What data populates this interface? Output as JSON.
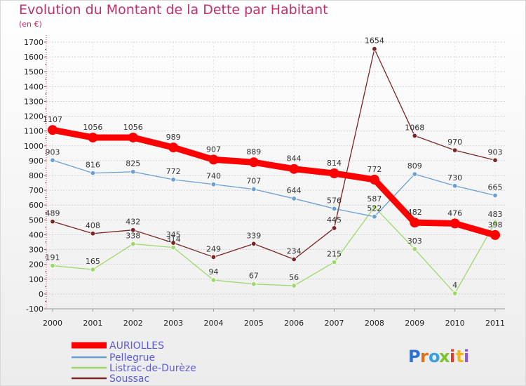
{
  "title": "Evolution du Montant de la Dette par Habitant",
  "unit_label": "(en €)",
  "brand": {
    "parts": [
      "P",
      "r",
      "o",
      "x",
      "i",
      "t",
      "i"
    ],
    "colors": [
      "#2f6fd0",
      "#e96b12",
      "#3aa0e0",
      "#7cc42c",
      "#e23c2c",
      "#f2b51a",
      "#8c5ad0"
    ]
  },
  "chart_data": {
    "type": "line",
    "x": [
      "2000",
      "2001",
      "2002",
      "2003",
      "2004",
      "2005",
      "2006",
      "2007",
      "2008",
      "2009",
      "2010",
      "2011"
    ],
    "ylim": [
      -100,
      1700
    ],
    "yticks": [
      "-100",
      "0",
      "100",
      "200",
      "300",
      "400",
      "500",
      "600",
      "700",
      "800",
      "900",
      "1000",
      "1100",
      "1200",
      "1300",
      "1400",
      "1500",
      "1600",
      "1700"
    ],
    "grid": true,
    "legend_position": "bottom-left",
    "series": [
      {
        "name": "AURIOLLES",
        "color": "#ff0000",
        "values": [
          1107,
          1056,
          1056,
          989,
          907,
          889,
          844,
          814,
          772,
          482,
          476,
          398
        ],
        "labels": [
          "1107",
          "1056",
          "1056",
          "989",
          "907",
          "889",
          "844",
          "814",
          "772",
          "482",
          "476",
          "398"
        ]
      },
      {
        "name": "Pellegrue",
        "color": "#6a9fd4",
        "values": [
          903,
          816,
          825,
          772,
          740,
          707,
          644,
          576,
          522,
          809,
          730,
          665
        ],
        "labels": [
          "903",
          "816",
          "825",
          "772",
          "740",
          "707",
          "644",
          "576",
          "522",
          "809",
          "730",
          "665"
        ]
      },
      {
        "name": "Listrac-de-Durèze",
        "color": "#9ed86a",
        "values": [
          191,
          165,
          338,
          314,
          94,
          67,
          56,
          215,
          587,
          303,
          4,
          483
        ],
        "labels": [
          "191",
          "165",
          "338",
          "314",
          "94",
          "67",
          "56",
          "215",
          "587",
          "303",
          "4",
          "483"
        ]
      },
      {
        "name": "Soussac",
        "color": "#7a2424",
        "values": [
          489,
          408,
          432,
          345,
          249,
          339,
          234,
          445,
          1654,
          1068,
          970,
          903
        ],
        "labels": [
          "489",
          "408",
          "432",
          "345",
          "249",
          "339",
          "234",
          "445",
          "1654",
          "1068",
          "970",
          "903"
        ]
      }
    ]
  }
}
